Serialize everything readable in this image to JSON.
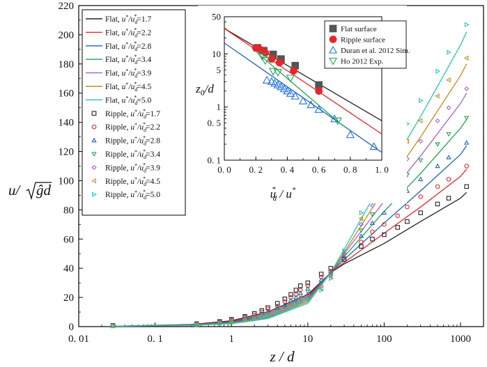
{
  "chart_data": [
    {
      "type": "line",
      "xscale": "log",
      "xlim": [
        0.01,
        2000
      ],
      "ylim": [
        0,
        220
      ],
      "xticks": [
        0.01,
        0.1,
        1,
        10,
        100,
        1000
      ],
      "xtick_labels": [
        "0. 01",
        "0. 1",
        "1",
        "10",
        "100",
        "1000"
      ],
      "yticks": [
        0,
        20,
        40,
        60,
        80,
        100,
        120,
        140,
        160,
        180,
        200,
        220
      ],
      "xlabel": "z / d",
      "ylabel": "u/√(ĝd)",
      "legend_position": "top-left",
      "lines": [
        {
          "name": "Flat, u*/ud*=1.7",
          "label_prefix": "Flat, ",
          "ratio": "1.7",
          "color": "#222222",
          "x": [
            0.03,
            0.3,
            1,
            3,
            10,
            20,
            30,
            100,
            300,
            1000,
            1200
          ],
          "y": [
            0.3,
            1.5,
            4,
            10,
            22,
            37,
            43,
            57,
            72,
            88,
            92
          ]
        },
        {
          "name": "Flat, u*/ud*=2.2",
          "label_prefix": "Flat, ",
          "ratio": "2.2",
          "color": "#e8262a",
          "x": [
            0.03,
            0.3,
            1,
            3,
            10,
            20,
            30,
            100,
            300,
            1000,
            1200
          ],
          "y": [
            0.3,
            1.3,
            3.5,
            9,
            21,
            37,
            44,
            64,
            82,
            103,
            108
          ]
        },
        {
          "name": "Flat, u*/ud*=2.8",
          "label_prefix": "Flat, ",
          "ratio": "2.8",
          "color": "#1f5fbf",
          "x": [
            0.03,
            0.3,
            1,
            3,
            10,
            20,
            30,
            100,
            300,
            1000,
            1200
          ],
          "y": [
            0.3,
            1.2,
            3,
            8,
            20,
            37,
            46,
            71,
            93,
            118,
            124
          ]
        },
        {
          "name": "Flat, u*/ud*=3.4",
          "label_prefix": "Flat, ",
          "ratio": "3.4",
          "color": "#22a352",
          "x": [
            0.03,
            0.3,
            1,
            3,
            10,
            20,
            30,
            100,
            300,
            1000,
            1200
          ],
          "y": [
            0.3,
            1.1,
            2.7,
            7,
            19,
            37,
            48,
            79,
            105,
            136,
            142
          ]
        },
        {
          "name": "Flat, u*/ud*=3.9",
          "label_prefix": "Flat, ",
          "ratio": "3.9",
          "color": "#a95fd6",
          "x": [
            0.03,
            0.3,
            1,
            3,
            10,
            20,
            30,
            100,
            300,
            1000,
            1200
          ],
          "y": [
            0.3,
            1.0,
            2.4,
            6.5,
            18,
            37,
            50,
            86,
            117,
            153,
            160
          ]
        },
        {
          "name": "Flat, u*/ud*=4.5",
          "label_prefix": "Flat, ",
          "ratio": "4.5",
          "color": "#c9891a",
          "x": [
            0.03,
            0.3,
            1,
            3,
            10,
            20,
            30,
            100,
            300,
            1000,
            1200
          ],
          "y": [
            0.3,
            0.9,
            2.2,
            6,
            17,
            37,
            51,
            94,
            130,
            172,
            180
          ]
        },
        {
          "name": "Flat, u*/ud*=5.0",
          "label_prefix": "Flat, ",
          "ratio": "5.0",
          "color": "#1fc6c0",
          "x": [
            0.03,
            0.3,
            1,
            3,
            10,
            20,
            30,
            100,
            300,
            1000,
            1200
          ],
          "y": [
            0.3,
            0.8,
            2,
            5.5,
            16,
            37,
            53,
            102,
            144,
            193,
            202
          ]
        }
      ],
      "points": [
        {
          "name": "Ripple, u*/ud*=1.7",
          "label_prefix": "Ripple, ",
          "ratio": "1.7",
          "color": "#222222",
          "marker": "square",
          "x": [
            0.028,
            0.35,
            0.7,
            1,
            1.5,
            2,
            2.5,
            3,
            4,
            5,
            6,
            7,
            8,
            10,
            15,
            20,
            30,
            50,
            70,
            100,
            150,
            200,
            300,
            500,
            700,
            1200
          ],
          "y": [
            0.8,
            2,
            3.5,
            5,
            7,
            9,
            11,
            13,
            16,
            19,
            22,
            25,
            28,
            30,
            36,
            40,
            46,
            55,
            60,
            63,
            68,
            72,
            78,
            84,
            88,
            96
          ]
        },
        {
          "name": "Ripple, u*/ud*=2.2",
          "label_prefix": "Ripple, ",
          "ratio": "2.2",
          "color": "#e8262a",
          "marker": "circle",
          "x": [
            0.028,
            0.35,
            0.7,
            1,
            1.5,
            2,
            2.5,
            3,
            4,
            5,
            6,
            7,
            8,
            10,
            15,
            20,
            30,
            50,
            70,
            100,
            150,
            200,
            300,
            500,
            700,
            1200
          ],
          "y": [
            0.7,
            1.8,
            3.2,
            4.5,
            6.5,
            8,
            10,
            12,
            14,
            17,
            20,
            22,
            25,
            28,
            34,
            38,
            47,
            58,
            65,
            70,
            76,
            82,
            89,
            96,
            101,
            110
          ]
        },
        {
          "name": "Ripple, u*/ud*=2.8",
          "label_prefix": "Ripple, ",
          "ratio": "2.8",
          "color": "#1f5fbf",
          "marker": "triangle-up",
          "x": [
            0.028,
            0.35,
            0.7,
            1,
            1.5,
            2,
            2.5,
            3,
            4,
            5,
            6,
            7,
            8,
            10,
            15,
            20,
            30,
            50,
            70,
            100,
            150,
            200,
            300,
            500,
            700,
            1200
          ],
          "y": [
            0.6,
            1.6,
            3,
            4,
            6,
            7,
            9,
            10,
            13,
            15,
            18,
            20,
            23,
            26,
            32,
            37,
            48,
            62,
            71,
            78,
            86,
            93,
            101,
            110,
            116,
            126
          ]
        },
        {
          "name": "Ripple, u*/ud*=3.4",
          "label_prefix": "Ripple, ",
          "ratio": "3.4",
          "color": "#22a352",
          "marker": "triangle-down",
          "x": [
            0.028,
            0.35,
            0.7,
            1,
            1.5,
            2,
            2.5,
            3,
            4,
            5,
            6,
            7,
            8,
            10,
            15,
            20,
            30,
            50,
            70,
            100,
            150,
            200,
            300,
            500,
            700,
            1200
          ],
          "y": [
            0.5,
            1.5,
            2.7,
            3.6,
            5.5,
            6.5,
            8,
            9,
            11.5,
            13.5,
            16,
            18,
            21,
            24,
            30,
            36,
            49,
            66,
            77,
            86,
            96,
            104,
            114,
            125,
            132,
            143
          ]
        },
        {
          "name": "Ripple, u*/ud*=3.9",
          "label_prefix": "Ripple, ",
          "ratio": "3.9",
          "color": "#a95fd6",
          "marker": "diamond",
          "x": [
            0.028,
            0.35,
            0.7,
            1,
            1.5,
            2,
            2.5,
            3,
            4,
            5,
            6,
            7,
            8,
            10,
            15,
            20,
            30,
            50,
            70,
            100,
            150,
            200,
            300,
            500,
            700,
            1200
          ],
          "y": [
            0.5,
            1.4,
            2.5,
            3.3,
            5,
            6,
            7.5,
            8.5,
            10.5,
            12.5,
            15,
            17,
            19.5,
            22,
            28,
            35,
            50,
            70,
            83,
            93,
            105,
            115,
            127,
            141,
            150,
            163
          ]
        },
        {
          "name": "Ripple, u*/ud*=4.5",
          "label_prefix": "Ripple, ",
          "ratio": "4.5",
          "color": "#c9891a",
          "marker": "triangle-left",
          "x": [
            0.028,
            0.35,
            0.7,
            1,
            1.5,
            2,
            2.5,
            3,
            4,
            5,
            6,
            7,
            8,
            10,
            15,
            20,
            30,
            50,
            70,
            100,
            150,
            200,
            300,
            500,
            700,
            1200
          ],
          "y": [
            0.5,
            1.3,
            2.3,
            3,
            4.5,
            5.5,
            7,
            8,
            10,
            11.5,
            14,
            16,
            18,
            20,
            26,
            34,
            51,
            74,
            89,
            101,
            115,
            127,
            141,
            158,
            169,
            184
          ]
        },
        {
          "name": "Ripple, u*/ud*=5.0",
          "label_prefix": "Ripple, ",
          "ratio": "5.0",
          "color": "#1fc6c0",
          "marker": "triangle-right",
          "x": [
            0.028,
            0.35,
            0.7,
            1,
            1.5,
            2,
            2.5,
            3,
            4,
            5,
            6,
            7,
            8,
            10,
            15,
            20,
            30,
            50,
            70,
            100,
            150,
            200,
            300,
            500,
            700,
            1200
          ],
          "y": [
            0.4,
            1.2,
            2.1,
            2.8,
            4.2,
            5,
            6.5,
            7.5,
            9.5,
            11,
            13,
            15,
            17,
            19,
            25,
            33,
            52,
            78,
            95,
            109,
            125,
            139,
            155,
            175,
            188,
            207
          ]
        }
      ]
    },
    {
      "type": "scatter",
      "yscale": "log",
      "xlim": [
        0,
        1.0
      ],
      "ylim": [
        0.1,
        50
      ],
      "xticks": [
        0.0,
        0.2,
        0.4,
        0.6,
        0.8,
        1.0
      ],
      "xtick_labels": [
        "0. 0",
        "0. 2",
        "0. 4",
        "0. 6",
        "0. 8",
        "1. 0"
      ],
      "yticks": [
        0.1,
        0.5,
        1,
        5,
        10,
        50
      ],
      "ytick_labels": [
        "0. 1",
        "0. 5",
        "1",
        "5",
        "10",
        "50"
      ],
      "xlabel": "u*d / u*",
      "ylabel": "z0/d",
      "legend_position": "top-right",
      "fit_lines": [
        {
          "color": "#222222",
          "x": [
            0,
            1.0
          ],
          "y": [
            30,
            0.55
          ]
        },
        {
          "color": "#e8262a",
          "x": [
            0,
            1.0
          ],
          "y": [
            30,
            0.31
          ]
        },
        {
          "color": "#1f5fbf",
          "x": [
            0,
            1.0
          ],
          "y": [
            16,
            0.14
          ]
        },
        {
          "color": "#22a352",
          "x": [
            0.2,
            0.75
          ],
          "y": [
            11,
            0.45
          ]
        }
      ],
      "series": [
        {
          "name": "Flat surface",
          "marker": "filled-square",
          "color": "#555555",
          "x": [
            0.21,
            0.25,
            0.31,
            0.36,
            0.45,
            0.6
          ],
          "y": [
            13,
            11.5,
            9.8,
            8,
            6,
            2.6
          ]
        },
        {
          "name": "Ripple surface",
          "marker": "filled-circle",
          "color": "#e8262a",
          "x": [
            0.2,
            0.23,
            0.26,
            0.3,
            0.35,
            0.44,
            0.6
          ],
          "y": [
            13,
            12,
            10.5,
            8,
            6.8,
            4.8,
            2
          ]
        },
        {
          "name": "Duran et al. 2012 Sim.",
          "marker": "triangle-up",
          "color": "#1f6fe0",
          "x": [
            0.27,
            0.3,
            0.32,
            0.34,
            0.36,
            0.38,
            0.4,
            0.42,
            0.45,
            0.5,
            0.55,
            0.6,
            0.7,
            0.8,
            0.95
          ],
          "y": [
            3.2,
            3.0,
            2.8,
            2.6,
            2.4,
            2.2,
            2.0,
            1.8,
            1.6,
            1.3,
            1.1,
            0.9,
            0.6,
            0.3,
            0.18
          ]
        },
        {
          "name": "Ho 2012 Exp.",
          "marker": "triangle-down",
          "color": "#22a352",
          "x": [
            0.24,
            0.26,
            0.31,
            0.34,
            0.42,
            0.72
          ],
          "y": [
            9,
            7.5,
            4.7,
            4.5,
            3.5,
            0.55
          ]
        }
      ]
    }
  ]
}
